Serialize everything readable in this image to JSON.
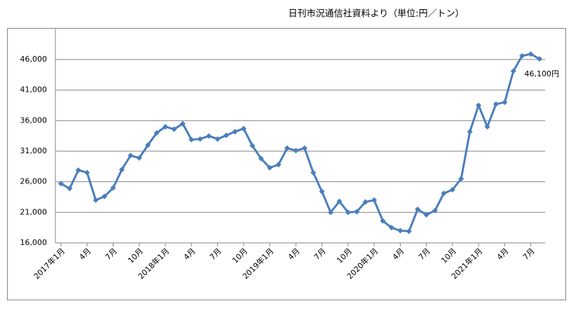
{
  "chart_data": {
    "type": "line",
    "title": "日刊市況通信社資料より（単位:円／トン）",
    "categories": [
      "2017年1月",
      null,
      null,
      "4月",
      null,
      null,
      "7月",
      null,
      null,
      "10月",
      null,
      null,
      "2018年1月",
      null,
      null,
      "4月",
      null,
      null,
      "7月",
      null,
      null,
      "10月",
      null,
      null,
      "2019年1月",
      null,
      null,
      "4月",
      null,
      null,
      "7月",
      null,
      null,
      "10月",
      null,
      null,
      "2020年1月",
      null,
      null,
      "4月",
      null,
      null,
      "7月",
      null,
      null,
      "10月",
      null,
      null,
      "2021年1月",
      null,
      null,
      "4月",
      null,
      null,
      "7月",
      null
    ],
    "series": [
      {
        "name": null,
        "color": "#4a7ebb",
        "values": [
          25700,
          24900,
          27900,
          27500,
          23000,
          23600,
          25000,
          28000,
          30300,
          29900,
          32000,
          34000,
          35000,
          34600,
          35500,
          32900,
          33000,
          33500,
          33000,
          33600,
          34200,
          34700,
          31900,
          29800,
          28300,
          28800,
          31500,
          31100,
          31500,
          27500,
          24400,
          21000,
          22800,
          21000,
          21100,
          22700,
          23000,
          19600,
          18500,
          18000,
          17900,
          21500,
          20600,
          21300,
          24100,
          24700,
          26500,
          34200,
          38500,
          35000,
          38700,
          39000,
          44100,
          46600,
          46900,
          46100
        ],
        "value_labels": [
          null,
          null,
          null,
          null,
          null,
          null,
          null,
          null,
          null,
          null,
          null,
          null,
          null,
          null,
          null,
          null,
          null,
          null,
          null,
          null,
          null,
          null,
          null,
          null,
          null,
          null,
          null,
          null,
          null,
          null,
          null,
          null,
          null,
          null,
          null,
          null,
          null,
          null,
          null,
          null,
          null,
          null,
          null,
          null,
          null,
          null,
          null,
          null,
          null,
          null,
          null,
          null,
          null,
          null,
          null,
          "46,100円"
        ]
      }
    ],
    "ylim": [
      16000,
      51000
    ],
    "yticks": [
      {
        "value": 16000,
        "label": "16,000"
      },
      {
        "value": 21000,
        "label": "21,000"
      },
      {
        "value": 26000,
        "label": "26,000"
      },
      {
        "value": 31000,
        "label": "31,000"
      },
      {
        "value": 36000,
        "label": "36,000"
      },
      {
        "value": 41000,
        "label": "41,000"
      },
      {
        "value": 46000,
        "label": "46,000"
      }
    ],
    "grid": true
  }
}
